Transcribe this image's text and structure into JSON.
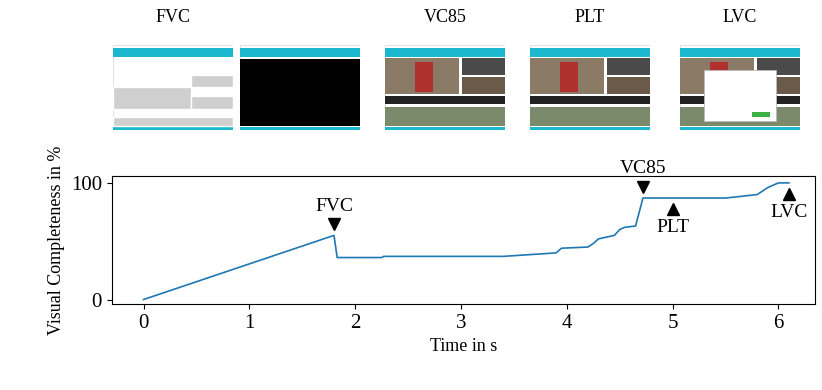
{
  "chart_data": {
    "type": "line",
    "x_label": "Time in s",
    "y_label": "Visual Completeness in %",
    "x": [
      0,
      1.8,
      1.83,
      2.25,
      2.27,
      3.4,
      3.9,
      3.95,
      4.2,
      4.25,
      4.3,
      4.4,
      4.45,
      4.5,
      4.55,
      4.65,
      4.72,
      5.0,
      5.5,
      5.6,
      5.8,
      5.9,
      6.0,
      6.1
    ],
    "values": [
      0,
      55,
      36,
      36,
      37,
      37,
      40,
      44,
      45,
      48,
      52,
      54,
      55,
      60,
      62,
      63,
      87,
      87,
      87,
      88,
      90,
      96,
      100,
      100
    ],
    "color": "#1f77b4",
    "xlim": [
      -0.3,
      6.35
    ],
    "ylim": [
      -4,
      106
    ],
    "xticks": [
      0,
      1,
      2,
      3,
      4,
      5,
      6
    ],
    "yticks": [
      0,
      100
    ],
    "grid": false,
    "events": [
      {
        "label": "FVC",
        "time": 1.8,
        "marker": "down"
      },
      {
        "label": "VC85",
        "time": 4.72,
        "marker": "down"
      },
      {
        "label": "PLT",
        "time": 5.0,
        "marker": "up"
      },
      {
        "label": "LVC",
        "time": 6.1,
        "marker": "up"
      }
    ],
    "thumbnails": [
      {
        "label": "FVC"
      },
      {
        "label": null
      },
      {
        "label": "VC85"
      },
      {
        "label": "PLT"
      },
      {
        "label": "LVC"
      }
    ]
  }
}
